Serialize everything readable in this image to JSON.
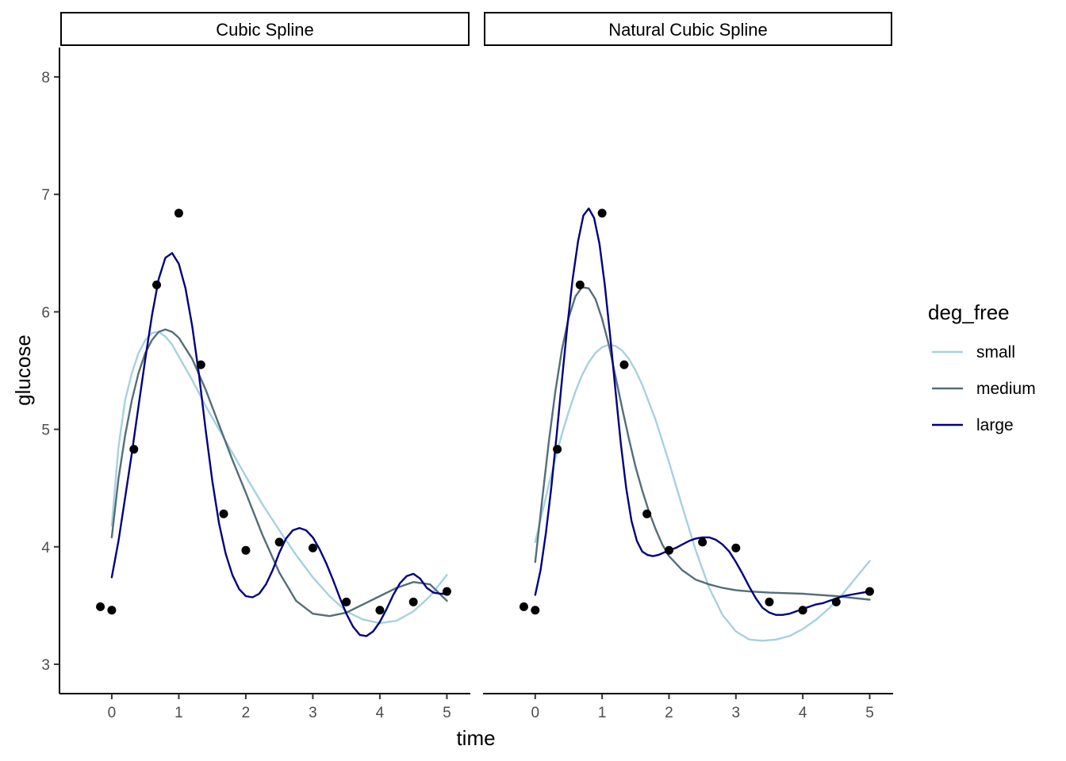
{
  "chart_data": {
    "type": "line",
    "xlabel": "time",
    "ylabel": "glucose",
    "xlim": [
      -0.78,
      5.35
    ],
    "ylim": [
      2.75,
      8.25
    ],
    "xticks": [
      0,
      1,
      2,
      3,
      4,
      5
    ],
    "yticks": [
      3,
      4,
      5,
      6,
      7,
      8
    ],
    "legend": {
      "title": "deg_free",
      "position": "right",
      "entries": [
        {
          "label": "small",
          "color": "#a6d1e0"
        },
        {
          "label": "medium",
          "color": "#546e7a"
        },
        {
          "label": "large",
          "color": "#000080"
        }
      ]
    },
    "points": [
      {
        "x": -0.17,
        "y": 3.49
      },
      {
        "x": 0.0,
        "y": 3.46
      },
      {
        "x": 0.33,
        "y": 4.83
      },
      {
        "x": 0.67,
        "y": 6.23
      },
      {
        "x": 1.0,
        "y": 6.84
      },
      {
        "x": 1.33,
        "y": 5.55
      },
      {
        "x": 1.67,
        "y": 4.28
      },
      {
        "x": 2.0,
        "y": 3.97
      },
      {
        "x": 2.5,
        "y": 4.04
      },
      {
        "x": 3.0,
        "y": 3.99
      },
      {
        "x": 3.5,
        "y": 3.53
      },
      {
        "x": 4.0,
        "y": 3.46
      },
      {
        "x": 4.5,
        "y": 3.53
      },
      {
        "x": 5.0,
        "y": 3.62
      }
    ],
    "panels": [
      {
        "strip": "Cubic Spline",
        "series": [
          {
            "name": "small",
            "color": "#a6d1e0",
            "x": [
              0,
              0.1,
              0.2,
              0.3,
              0.4,
              0.5,
              0.6,
              0.7,
              0.8,
              0.9,
              1.0,
              1.2,
              1.4,
              1.6,
              1.8,
              2.0,
              2.25,
              2.5,
              2.75,
              3.0,
              3.25,
              3.5,
              3.75,
              4.0,
              4.25,
              4.5,
              4.75,
              5.0
            ],
            "y": [
              4.18,
              4.85,
              5.25,
              5.48,
              5.65,
              5.76,
              5.82,
              5.83,
              5.79,
              5.72,
              5.62,
              5.42,
              5.2,
              5.0,
              4.8,
              4.6,
              4.36,
              4.14,
              3.93,
              3.74,
              3.58,
              3.45,
              3.38,
              3.35,
              3.37,
              3.45,
              3.58,
              3.76
            ]
          },
          {
            "name": "medium",
            "color": "#546e7a",
            "x": [
              0,
              0.1,
              0.2,
              0.3,
              0.4,
              0.5,
              0.6,
              0.7,
              0.8,
              0.9,
              1.0,
              1.2,
              1.4,
              1.6,
              1.8,
              2.0,
              2.25,
              2.5,
              2.75,
              3.0,
              3.25,
              3.5,
              3.75,
              4.0,
              4.25,
              4.5,
              4.75,
              5.0
            ],
            "y": [
              4.08,
              4.58,
              4.95,
              5.25,
              5.48,
              5.65,
              5.76,
              5.83,
              5.85,
              5.83,
              5.78,
              5.6,
              5.34,
              5.04,
              4.74,
              4.46,
              4.1,
              3.78,
              3.54,
              3.43,
              3.41,
              3.44,
              3.51,
              3.58,
              3.65,
              3.7,
              3.68,
              3.54
            ]
          },
          {
            "name": "large",
            "color": "#000080",
            "x": [
              0,
              0.1,
              0.2,
              0.3,
              0.4,
              0.5,
              0.6,
              0.7,
              0.8,
              0.9,
              1.0,
              1.1,
              1.2,
              1.3,
              1.4,
              1.5,
              1.6,
              1.7,
              1.8,
              1.9,
              2.0,
              2.1,
              2.2,
              2.3,
              2.4,
              2.5,
              2.6,
              2.7,
              2.8,
              2.9,
              3.0,
              3.1,
              3.2,
              3.3,
              3.4,
              3.5,
              3.6,
              3.7,
              3.8,
              3.9,
              4.0,
              4.1,
              4.2,
              4.3,
              4.4,
              4.5,
              4.6,
              4.7,
              4.8,
              4.9,
              5.0
            ],
            "y": [
              3.74,
              4.05,
              4.42,
              4.8,
              5.2,
              5.6,
              5.97,
              6.28,
              6.46,
              6.5,
              6.41,
              6.2,
              5.88,
              5.47,
              5.0,
              4.56,
              4.2,
              3.94,
              3.76,
              3.64,
              3.58,
              3.57,
              3.6,
              3.68,
              3.8,
              3.95,
              4.07,
              4.14,
              4.16,
              4.14,
              4.08,
              3.98,
              3.86,
              3.72,
              3.57,
              3.43,
              3.32,
              3.25,
              3.24,
              3.28,
              3.36,
              3.47,
              3.59,
              3.69,
              3.75,
              3.77,
              3.73,
              3.65,
              3.61,
              3.6,
              3.6
            ]
          }
        ]
      },
      {
        "strip": "Natural Cubic Spline",
        "series": [
          {
            "name": "small",
            "color": "#a6d1e0",
            "x": [
              0,
              0.1,
              0.2,
              0.3,
              0.4,
              0.5,
              0.6,
              0.7,
              0.8,
              0.9,
              1.0,
              1.1,
              1.2,
              1.3,
              1.4,
              1.5,
              1.6,
              1.8,
              2.0,
              2.2,
              2.4,
              2.6,
              2.8,
              3.0,
              3.2,
              3.4,
              3.6,
              3.8,
              4.0,
              4.2,
              4.4,
              4.6,
              4.8,
              5.0
            ],
            "y": [
              4.04,
              4.28,
              4.52,
              4.75,
              4.96,
              5.15,
              5.32,
              5.46,
              5.57,
              5.65,
              5.7,
              5.72,
              5.71,
              5.67,
              5.6,
              5.5,
              5.38,
              5.08,
              4.72,
              4.34,
              3.97,
              3.65,
              3.42,
              3.28,
              3.21,
              3.2,
              3.21,
              3.24,
              3.3,
              3.38,
              3.48,
              3.6,
              3.74,
              3.88
            ]
          },
          {
            "name": "medium",
            "color": "#546e7a",
            "x": [
              0,
              0.1,
              0.2,
              0.3,
              0.4,
              0.5,
              0.6,
              0.7,
              0.8,
              0.9,
              1.0,
              1.1,
              1.2,
              1.3,
              1.4,
              1.5,
              1.6,
              1.7,
              1.8,
              1.9,
              2.0,
              2.2,
              2.4,
              2.6,
              2.8,
              3.0,
              3.2,
              3.5,
              4.0,
              4.5,
              5.0
            ],
            "y": [
              3.87,
              4.38,
              4.88,
              5.32,
              5.68,
              5.95,
              6.13,
              6.21,
              6.2,
              6.11,
              5.94,
              5.72,
              5.45,
              5.18,
              4.92,
              4.68,
              4.48,
              4.3,
              4.15,
              4.02,
              3.92,
              3.8,
              3.72,
              3.68,
              3.65,
              3.63,
              3.62,
              3.61,
              3.6,
              3.58,
              3.55
            ]
          },
          {
            "name": "large",
            "color": "#000080",
            "x": [
              0,
              0.08,
              0.16,
              0.24,
              0.32,
              0.4,
              0.48,
              0.56,
              0.64,
              0.72,
              0.8,
              0.88,
              0.96,
              1.04,
              1.12,
              1.2,
              1.28,
              1.36,
              1.44,
              1.52,
              1.6,
              1.68,
              1.76,
              1.84,
              1.92,
              2.0,
              2.1,
              2.2,
              2.3,
              2.4,
              2.5,
              2.6,
              2.7,
              2.8,
              2.9,
              3.0,
              3.1,
              3.2,
              3.3,
              3.4,
              3.5,
              3.6,
              3.7,
              3.8,
              3.9,
              4.0,
              4.1,
              4.2,
              4.3,
              4.4,
              4.5,
              4.6,
              4.7,
              4.8,
              4.9,
              5.0
            ],
            "y": [
              3.59,
              3.8,
              4.12,
              4.5,
              4.95,
              5.42,
              5.88,
              6.28,
              6.6,
              6.82,
              6.88,
              6.8,
              6.58,
              6.23,
              5.8,
              5.33,
              4.88,
              4.5,
              4.22,
              4.05,
              3.96,
              3.93,
              3.92,
              3.93,
              3.95,
              3.97,
              3.99,
              4.02,
              4.05,
              4.07,
              4.08,
              4.08,
              4.06,
              4.02,
              3.96,
              3.87,
              3.77,
              3.66,
              3.56,
              3.48,
              3.44,
              3.42,
              3.42,
              3.43,
              3.45,
              3.47,
              3.49,
              3.51,
              3.52,
              3.54,
              3.56,
              3.58,
              3.59,
              3.6,
              3.61,
              3.62
            ]
          }
        ]
      }
    ]
  }
}
